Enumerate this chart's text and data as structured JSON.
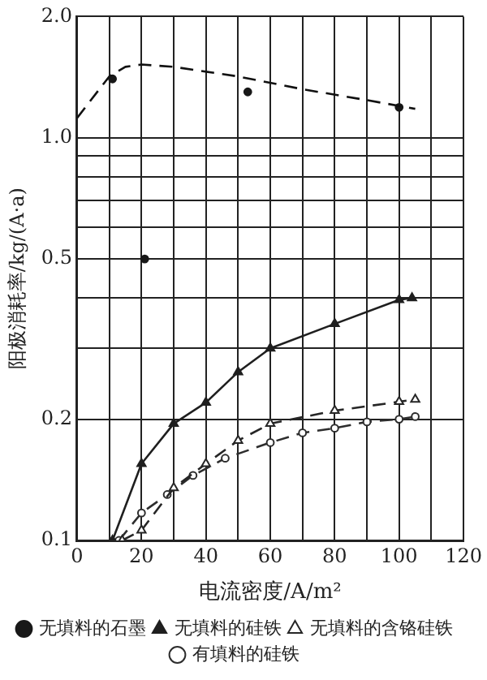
{
  "chart_data": {
    "type": "line",
    "xlabel": "电流密度/A/m²",
    "ylabel": "阳极消耗率/kg/(A·a)",
    "log": "y",
    "grid": true,
    "legend": "bottom",
    "xlim": [
      0,
      120
    ],
    "xticks": [
      0,
      {
        "value": 10,
        "label": null
      },
      20,
      {
        "value": 30,
        "label": null
      },
      40,
      {
        "value": 50,
        "label": null
      },
      60,
      {
        "value": 70,
        "label": null
      },
      80,
      {
        "value": 90,
        "label": null
      },
      100,
      {
        "value": 110,
        "label": null
      },
      120
    ],
    "ylim": [
      0.1,
      2.0
    ],
    "yticks": [
      0.1,
      {
        "value": 0.2,
        "label": "0.2"
      },
      {
        "value": 0.3,
        "label": null
      },
      {
        "value": 0.4,
        "label": null
      },
      0.5,
      {
        "value": 0.6,
        "label": null
      },
      {
        "value": 0.7,
        "label": null
      },
      {
        "value": 0.8,
        "label": null
      },
      {
        "value": 0.9,
        "label": null
      },
      {
        "value": 1,
        "label": "1.0"
      },
      {
        "value": 2,
        "label": "2.0"
      }
    ],
    "series": [
      {
        "type": "line",
        "color": "#111111",
        "line_style": "dashed",
        "marker": "none",
        "x": [
          0,
          10,
          15,
          20,
          30,
          50,
          70,
          90,
          105
        ],
        "values": [
          1.12,
          1.42,
          1.5,
          1.52,
          1.5,
          1.42,
          1.32,
          1.24,
          1.18
        ]
      },
      {
        "type": "scatter",
        "name": "无填料的石墨",
        "color": "#181818",
        "marker": "circle",
        "x": [
          11,
          21,
          53,
          100
        ],
        "values": [
          1.4,
          0.5,
          1.3,
          1.19
        ]
      },
      {
        "type": "line",
        "name": "无填料的硅铁",
        "color": "#1f1f1f",
        "line_style": "solid",
        "marker": "triangle",
        "x": [
          11,
          20,
          30,
          40,
          50,
          60,
          80,
          100,
          104
        ],
        "values": [
          0.1,
          0.155,
          0.195,
          0.22,
          0.262,
          0.3,
          0.345,
          0.396,
          0.4
        ]
      },
      {
        "type": "line",
        "name": "无填料的含铬硅铁",
        "color": "#262626",
        "line_style": "dashed",
        "marker": "triangle",
        "x": [
          14,
          20,
          30,
          40,
          50,
          60,
          80,
          100,
          105
        ],
        "values": [
          0.1,
          0.106,
          0.135,
          0.155,
          0.177,
          0.195,
          0.21,
          0.221,
          0.224
        ]
      },
      {
        "type": "line",
        "name": "有填料的硅铁",
        "color": "#2d2d2d",
        "line_style": "dashed",
        "marker": "circle",
        "x": [
          13,
          20,
          28,
          36,
          46,
          60,
          70,
          80,
          90,
          100,
          105
        ],
        "values": [
          0.1,
          0.117,
          0.13,
          0.145,
          0.16,
          0.175,
          0.185,
          0.19,
          0.197,
          0.2,
          0.203
        ]
      }
    ]
  }
}
